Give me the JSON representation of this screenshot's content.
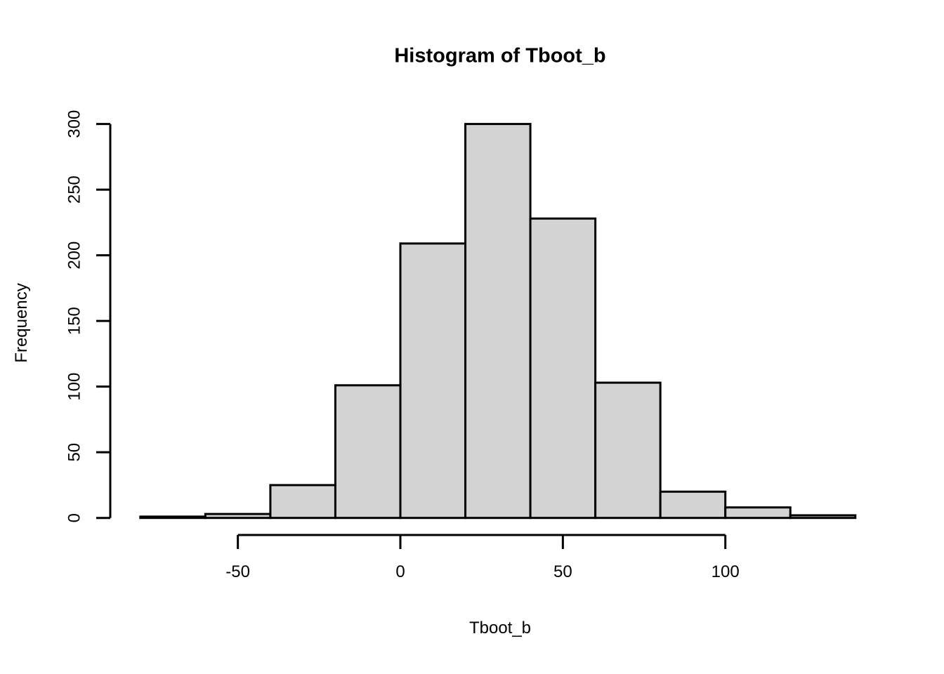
{
  "page": {
    "background": "#ffffff"
  },
  "chart_data": {
    "type": "bar",
    "subtype": "histogram",
    "title": "Histogram of Tboot_b",
    "xlabel": "Tboot_b",
    "ylabel": "Frequency",
    "bin_start": -80,
    "bin_width": 20,
    "bin_edges": [
      -80,
      -60,
      -40,
      -20,
      0,
      20,
      40,
      60,
      80,
      100,
      120,
      140
    ],
    "counts": [
      1,
      3,
      25,
      101,
      209,
      300,
      228,
      103,
      20,
      8,
      2
    ],
    "x_ticks": [
      -50,
      0,
      50,
      100
    ],
    "y_ticks": [
      0,
      50,
      100,
      150,
      200,
      250,
      300
    ],
    "xlim": [
      -80,
      140
    ],
    "ylim": [
      0,
      300
    ],
    "grid": false,
    "legend": false,
    "bar_fill": "#d3d3d3",
    "bar_border": "#000000",
    "axis_color": "#000000",
    "text_color": "#000000"
  }
}
